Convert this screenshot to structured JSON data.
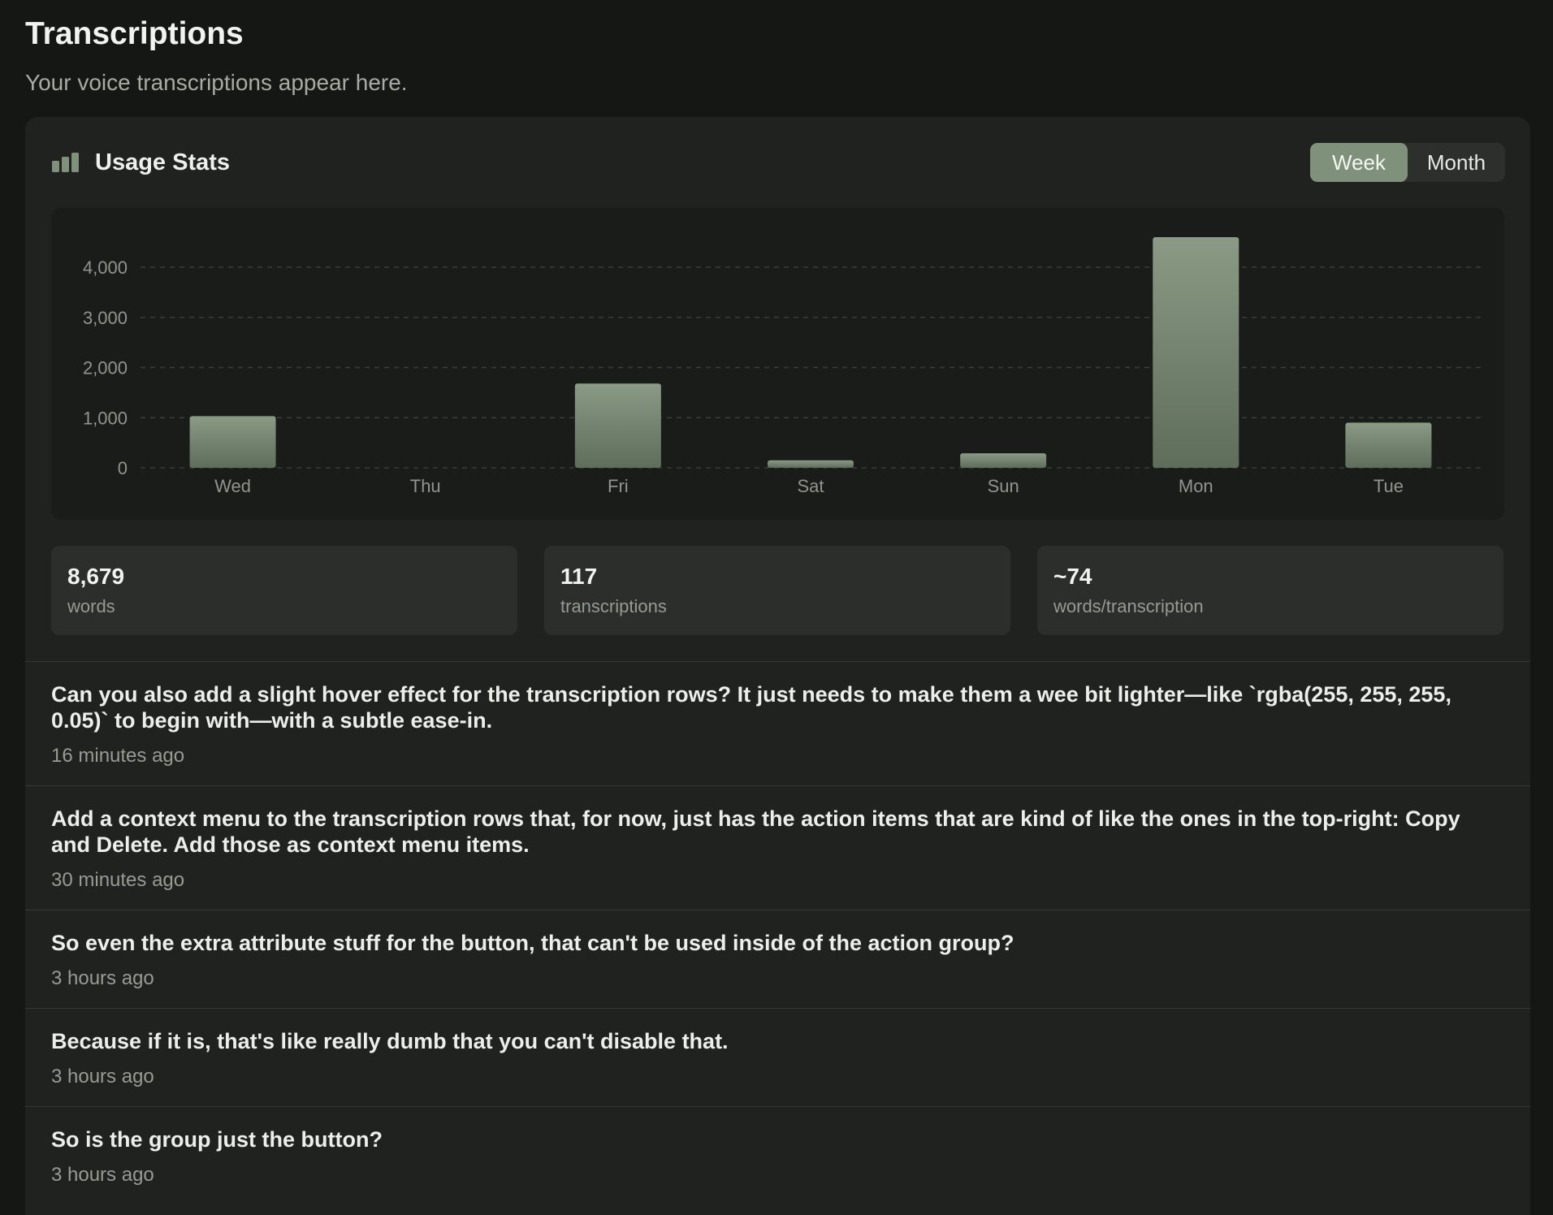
{
  "header": {
    "title": "Transcriptions",
    "subtitle": "Your voice transcriptions appear here."
  },
  "usage": {
    "title": "Usage Stats",
    "icon": "bar-chart-icon",
    "period_options": [
      "Week",
      "Month"
    ],
    "selected_period": "Week"
  },
  "colors": {
    "accent": "#7f917a",
    "bar_top": "#8a9a84",
    "bar_bottom": "#5f6d5b",
    "background": "#151714",
    "card": "#20221f"
  },
  "chart_data": {
    "type": "bar",
    "categories": [
      "Wed",
      "Thu",
      "Fri",
      "Sat",
      "Sun",
      "Mon",
      "Tue"
    ],
    "values": [
      1030,
      0,
      1680,
      150,
      290,
      4600,
      900
    ],
    "ylim": [
      0,
      4600
    ],
    "yticks": [
      0,
      1000,
      2000,
      3000,
      4000
    ],
    "ytick_labels": [
      "0",
      "1,000",
      "2,000",
      "3,000",
      "4,000"
    ],
    "grid": true
  },
  "stats": [
    {
      "value": "8,679",
      "label": "words"
    },
    {
      "value": "117",
      "label": "transcriptions"
    },
    {
      "value": "~74",
      "label": "words/transcription"
    }
  ],
  "transcriptions": [
    {
      "text": "Can you also add a slight hover effect for the transcription rows? It just needs to make them a wee bit lighter—like `rgba(255, 255, 255, 0.05)` to begin with—with a subtle ease-in.",
      "time": "16 minutes ago"
    },
    {
      "text": "Add a context menu to the transcription rows that, for now, just has the action items that are kind of like the ones in the top-right: Copy and Delete. Add those as context menu items.",
      "time": "30 minutes ago"
    },
    {
      "text": "So even the extra attribute stuff for the button, that can't be used inside of the action group?",
      "time": "3 hours ago"
    },
    {
      "text": "Because if it is, that's like really dumb that you can't disable that.",
      "time": "3 hours ago"
    },
    {
      "text": "So is the group just the button?",
      "time": "3 hours ago"
    }
  ]
}
